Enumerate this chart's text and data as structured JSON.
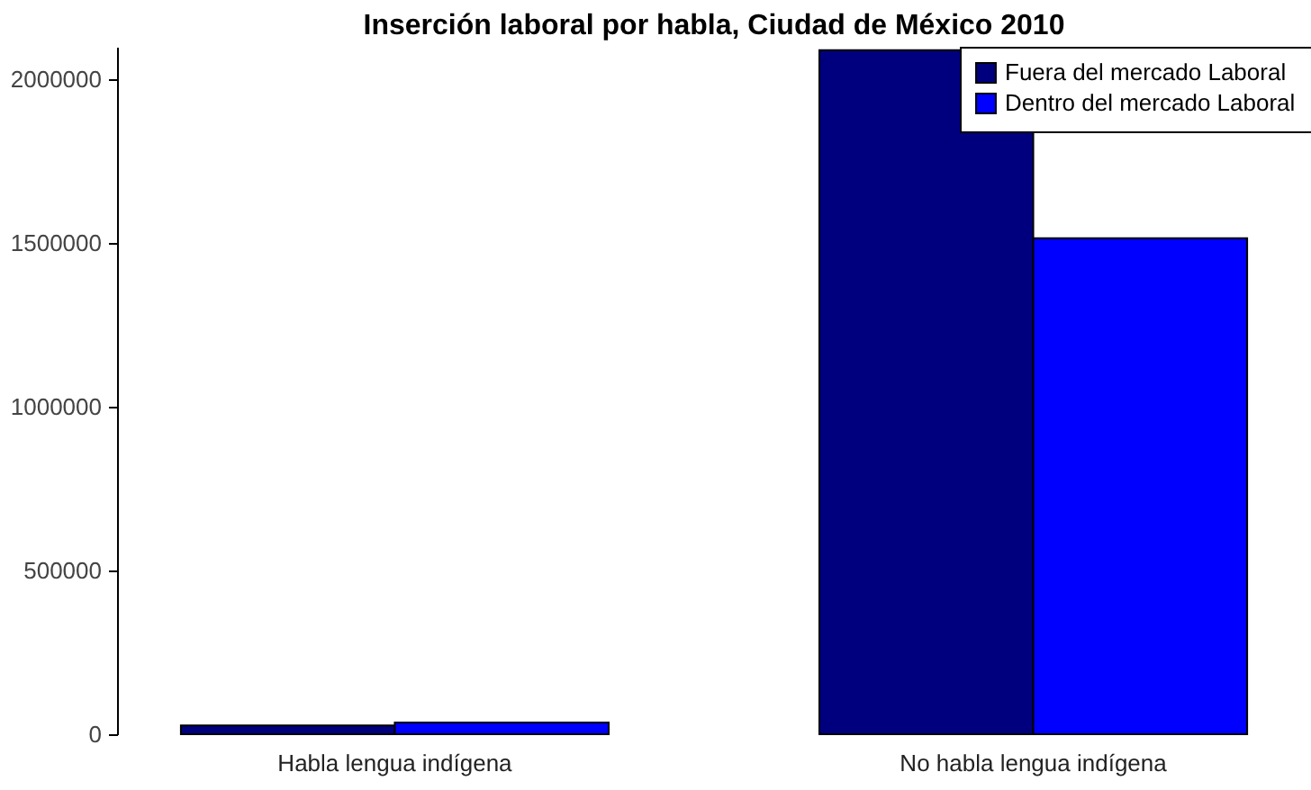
{
  "chart_data": {
    "type": "bar",
    "title": "Inserción laboral por habla, Ciudad de México 2010",
    "categories": [
      "Habla lengua indígena",
      "No habla lengua indígena"
    ],
    "series": [
      {
        "name": "Fuera del mercado Laboral",
        "color": "#00007f",
        "values": [
          27000,
          2090000
        ]
      },
      {
        "name": "Dentro del mercado Laboral",
        "color": "#0000ff",
        "values": [
          36000,
          1515000
        ]
      }
    ],
    "ylim": [
      0,
      2100000
    ],
    "yticks": [
      0,
      500000,
      1000000,
      1500000,
      2000000
    ],
    "grid": false,
    "legend": "top right"
  }
}
